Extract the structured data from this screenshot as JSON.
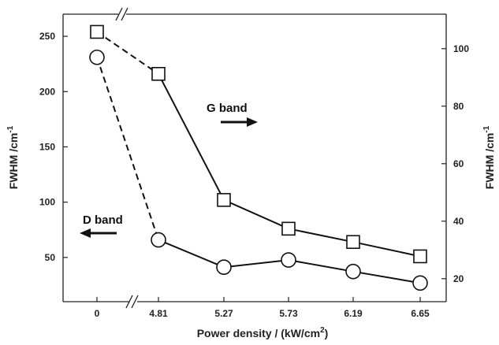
{
  "chart_data": {
    "type": "line",
    "x_categories": [
      "0",
      "4.81",
      "5.27",
      "5.73",
      "6.19",
      "6.65"
    ],
    "x_title": "Power density / (kW/cm",
    "x_title_sup": "2",
    "x_title_end": ")",
    "y_left": {
      "title": "FWHM /cm",
      "title_sup": "-1",
      "lim": [
        10,
        270
      ],
      "ticks": [
        50,
        100,
        150,
        200,
        250
      ]
    },
    "y_right": {
      "title": "FWHM /cm",
      "title_sup": "-1",
      "lim": [
        12,
        112
      ],
      "ticks": [
        20,
        40,
        60,
        80,
        100
      ]
    },
    "series": [
      {
        "marker": "square",
        "axis": "left",
        "values": [
          254,
          216,
          102,
          76,
          64,
          51
        ]
      },
      {
        "marker": "circle",
        "axis": "right",
        "values": [
          97,
          33.5,
          24,
          26.5,
          22.5,
          18.5
        ]
      }
    ],
    "annotations": [
      {
        "text": "G band",
        "arrow": "right"
      },
      {
        "text": "D band",
        "arrow": "left"
      }
    ],
    "axis_break": true,
    "grid": false
  }
}
